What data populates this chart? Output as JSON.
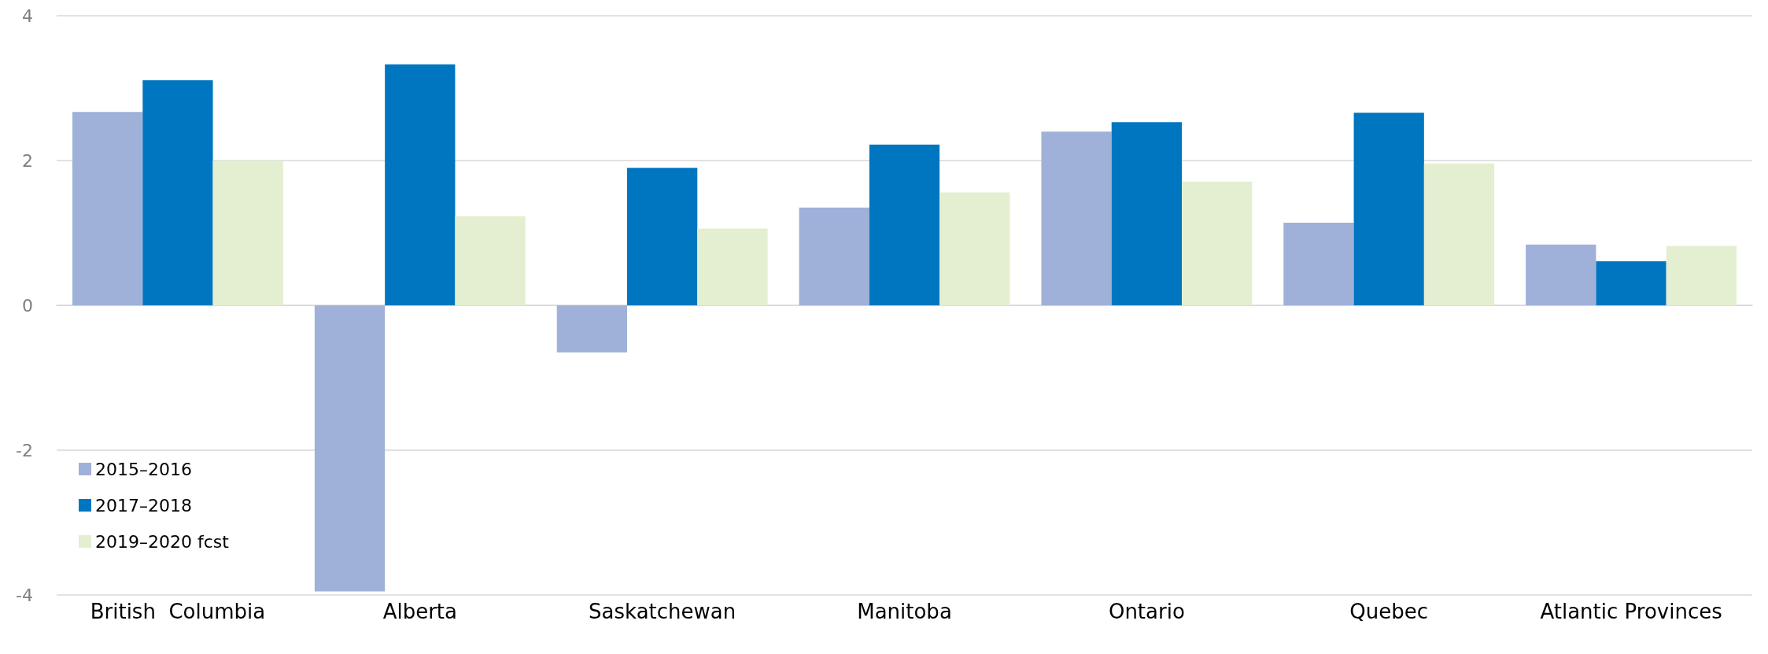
{
  "chart_data": {
    "type": "bar",
    "categories": [
      "British  Columbia",
      "Alberta",
      "Saskatchewan",
      "Manitoba",
      "Ontario",
      "Quebec",
      "Atlantic Provinces"
    ],
    "series": [
      {
        "name": "2015–2016",
        "color": "#9fb1d8",
        "values": [
          2.67,
          -3.95,
          -0.65,
          1.35,
          2.4,
          1.14,
          0.84
        ]
      },
      {
        "name": "2017–2018",
        "color": "#0076c0",
        "values": [
          3.11,
          3.33,
          1.9,
          2.22,
          2.53,
          2.66,
          0.61
        ]
      },
      {
        "name": "2019–2020 fcst",
        "color": "#e3efd0",
        "values": [
          2.0,
          1.23,
          1.06,
          1.56,
          1.71,
          1.96,
          0.82
        ]
      }
    ],
    "ylim": [
      -4,
      4
    ],
    "yticks": [
      -4,
      -2,
      0,
      2,
      4
    ],
    "grid": "y",
    "legend": "bottom left"
  }
}
